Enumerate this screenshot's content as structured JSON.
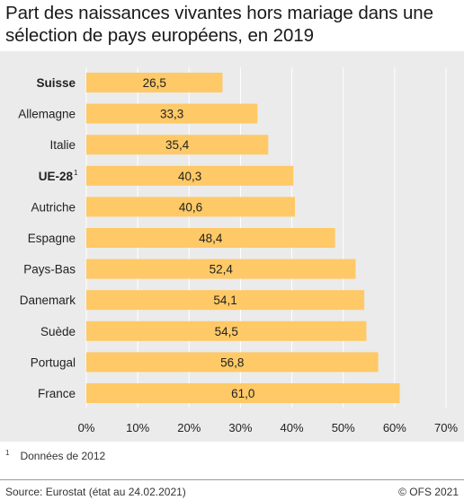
{
  "title": "Part des naissances vivantes hors mariage dans une sélection de pays européens, en 2019",
  "footnote": {
    "marker": "1",
    "text": "Données de 2012"
  },
  "source": "Source: Eurostat (état au 24.02.2021)",
  "copyright": "© OFS 2021",
  "colors": {
    "bar": "#fec966",
    "panel": "#ebebeb",
    "grid": "#ffffff",
    "text": "#222222"
  },
  "chart_data": {
    "type": "bar",
    "orientation": "horizontal",
    "categories": [
      "Suisse",
      "Allemagne",
      "Italie",
      "UE-28",
      "Autriche",
      "Espagne",
      "Pays-Bas",
      "Danemark",
      "Suède",
      "Portugal",
      "France"
    ],
    "category_markers": [
      "",
      "",
      "",
      "1",
      "",
      "",
      "",
      "",
      "",
      "",
      ""
    ],
    "bold_categories": [
      "Suisse",
      "UE-28"
    ],
    "values": [
      26.5,
      33.3,
      35.4,
      40.3,
      40.6,
      48.4,
      52.4,
      54.1,
      54.5,
      56.8,
      61.0
    ],
    "value_labels": [
      "26,5",
      "33,3",
      "35,4",
      "40,3",
      "40,6",
      "48,4",
      "52,4",
      "54,1",
      "54,5",
      "56,8",
      "61,0"
    ],
    "xlim": [
      0,
      70
    ],
    "x_ticks": [
      0,
      10,
      20,
      30,
      40,
      50,
      60,
      70
    ],
    "x_tick_labels": [
      "0%",
      "10%",
      "20%",
      "30%",
      "40%",
      "50%",
      "60%",
      "70%"
    ],
    "grid": true,
    "xlabel": "",
    "ylabel": ""
  }
}
